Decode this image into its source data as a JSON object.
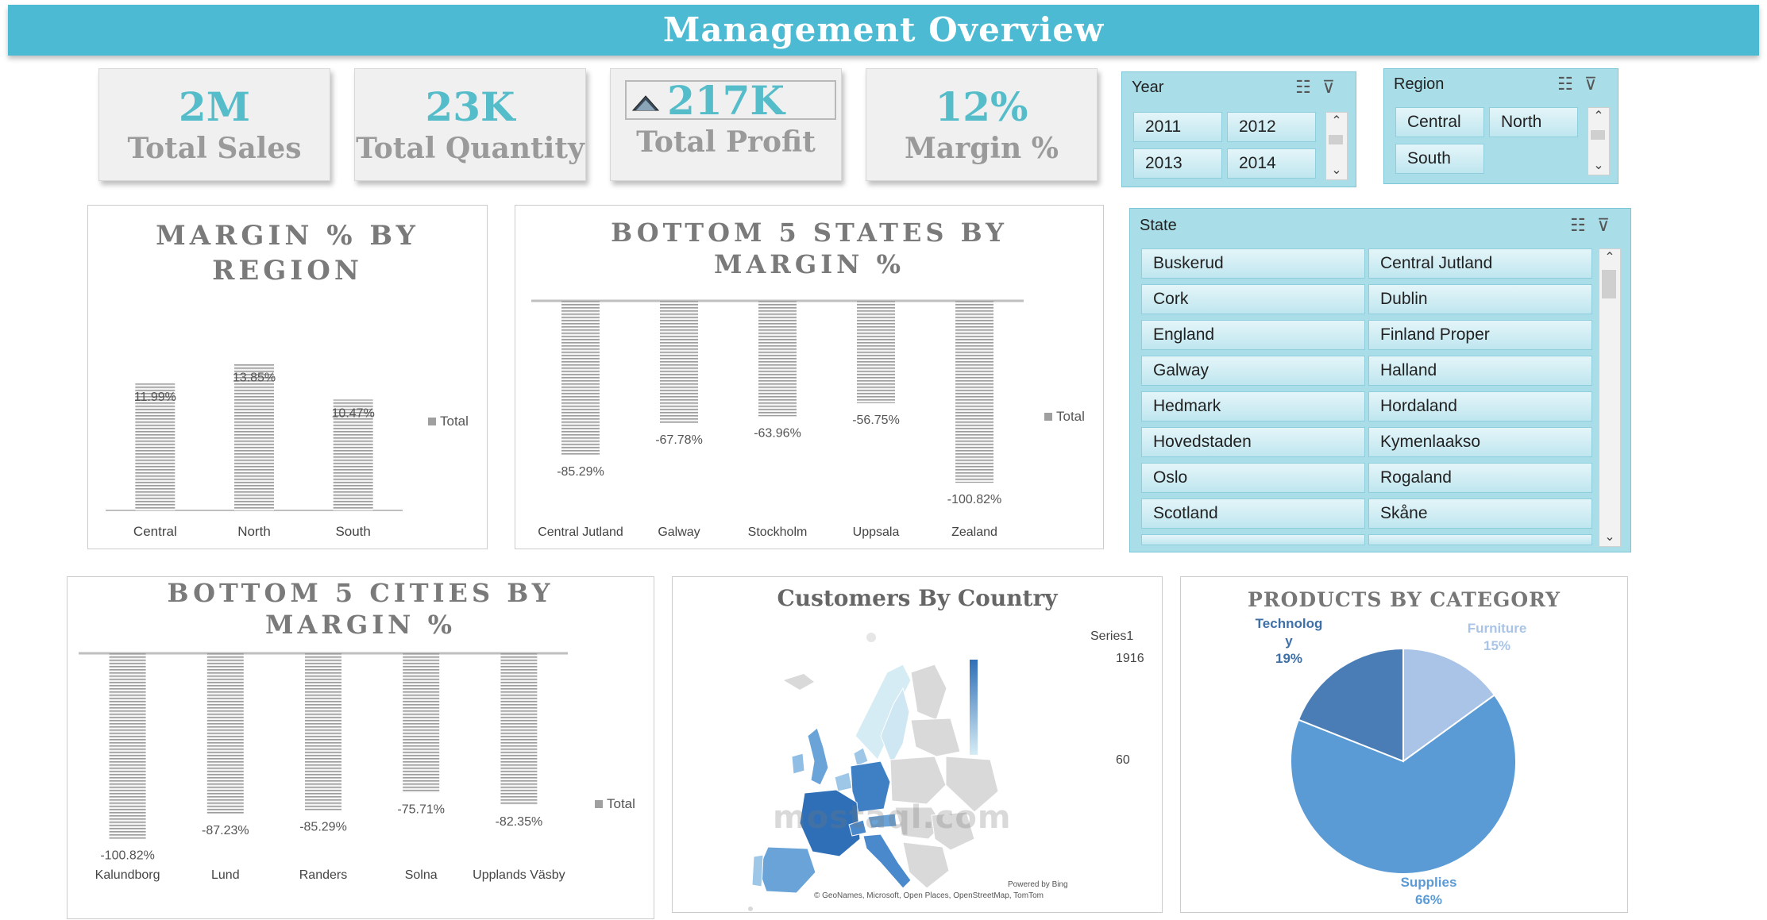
{
  "header": {
    "title": "Management Overview"
  },
  "kpis": {
    "sales": {
      "value": "2M",
      "label": "Total Sales"
    },
    "quantity": {
      "value": "23K",
      "label": "Total Quantity"
    },
    "profit": {
      "value": "217K",
      "label": "Total Profit"
    },
    "margin": {
      "value": "12%",
      "label": "Margin %"
    }
  },
  "slicers": {
    "year": {
      "title": "Year",
      "items": [
        "2011",
        "2012",
        "2013",
        "2014"
      ]
    },
    "region": {
      "title": "Region",
      "items": [
        "Central",
        "North",
        "South"
      ]
    },
    "state": {
      "title": "State",
      "items": [
        "Buskerud",
        "Central Jutland",
        "Cork",
        "Dublin",
        "England",
        "Finland Proper",
        "Galway",
        "Halland",
        "Hedmark",
        "Hordaland",
        "Hovedstaden",
        "Kymenlaakso",
        "Oslo",
        "Rogaland",
        "Scotland",
        "Skåne"
      ]
    }
  },
  "chart_data": [
    {
      "id": "margin_by_region",
      "type": "bar",
      "title_line1": "MARGIN % BY",
      "title_line2": "REGION",
      "categories": [
        "Central",
        "North",
        "South"
      ],
      "values": [
        11.99,
        13.85,
        10.47
      ],
      "value_labels": [
        "11.99%",
        "13.85%",
        "10.47%"
      ],
      "legend": "Total",
      "legend_position": "right",
      "ylim": [
        0,
        15
      ],
      "grid": false
    },
    {
      "id": "bottom5_states",
      "type": "bar",
      "title_line1": "BOTTOM 5 STATES BY",
      "title_line2": "MARGIN %",
      "categories": [
        "Central Jutland",
        "Galway",
        "Stockholm",
        "Uppsala",
        "Zealand"
      ],
      "values": [
        -85.29,
        -67.78,
        -63.96,
        -56.75,
        -100.82
      ],
      "value_labels": [
        "-85.29%",
        "-67.78%",
        "-63.96%",
        "-56.75%",
        "-100.82%"
      ],
      "legend": "Total",
      "legend_position": "right",
      "ylim": [
        -110,
        0
      ],
      "grid": false
    },
    {
      "id": "bottom5_cities",
      "type": "bar",
      "title_line1": "BOTTOM 5 CITIES BY",
      "title_line2": "MARGIN %",
      "categories": [
        "Kalundborg",
        "Lund",
        "Randers",
        "Solna",
        "Upplands Väsby"
      ],
      "values": [
        -100.82,
        -87.23,
        -85.29,
        -75.71,
        -82.35
      ],
      "value_labels": [
        "-100.82%",
        "-87.23%",
        "-85.29%",
        "-75.71%",
        "-82.35%"
      ],
      "legend": "Total",
      "legend_position": "right",
      "ylim": [
        -110,
        0
      ],
      "grid": false
    },
    {
      "id": "products_by_category",
      "type": "pie",
      "title": "PRODUCTS BY CATEGORY",
      "categories": [
        "Furniture",
        "Supplies",
        "Technolog y"
      ],
      "values": [
        15,
        66,
        19
      ],
      "value_labels": [
        "15%",
        "66%",
        "19%"
      ],
      "colors": [
        "#a9c4e6",
        "#5b9bd5",
        "#4a7db5"
      ]
    }
  ],
  "map": {
    "title": "Customers By Country",
    "legend_title": "Series1",
    "legend_max": "1916",
    "legend_min": "60",
    "credit_powered": "Powered by Bing",
    "credit_sources": "© GeoNames, Microsoft, Open Places, OpenStreetMap, TomTom",
    "watermark": "mostaql.com",
    "colors": {
      "high": "#2f6fb7",
      "mid": "#6aa3d8",
      "low": "#d6ecf5",
      "none": "#d9d9d9"
    }
  },
  "colors": {
    "accent": "#4bbad2",
    "kpi_value": "#55bcc9",
    "bar": "#b5b5b5"
  }
}
